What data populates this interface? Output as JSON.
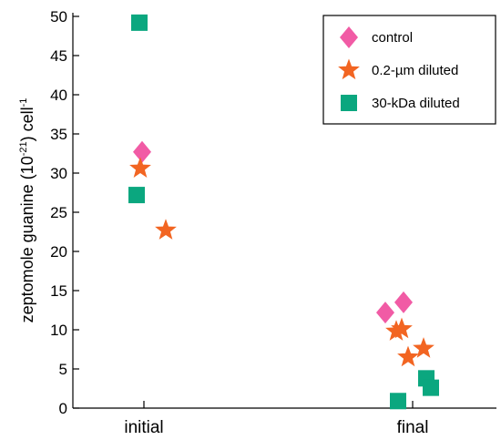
{
  "chart_data": {
    "type": "scatter",
    "categories": [
      "initial",
      "final"
    ],
    "ylabel_parts": {
      "main": "zeptomole guanine (10",
      "exp1": "-21",
      "mid": ") cell",
      "exp2": "-1"
    },
    "ylim": [
      0,
      50
    ],
    "yticks": [
      0,
      5,
      10,
      15,
      20,
      25,
      30,
      35,
      40,
      45,
      50
    ],
    "grid": false,
    "legend_position": "top-right",
    "series": [
      {
        "name": "control",
        "marker": "diamond",
        "color": "#f15ba5",
        "points": [
          {
            "x": "initial",
            "offset": -0.02,
            "y": 32.7
          },
          {
            "x": "final",
            "offset": -0.3,
            "y": 12.2
          },
          {
            "x": "final",
            "offset": -0.1,
            "y": 13.5
          }
        ]
      },
      {
        "name": "0.2-µm diluted",
        "marker": "star",
        "color": "#f26522",
        "points": [
          {
            "x": "initial",
            "offset": -0.04,
            "y": 30.6
          },
          {
            "x": "initial",
            "offset": 0.24,
            "y": 22.7
          },
          {
            "x": "final",
            "offset": -0.18,
            "y": 9.8
          },
          {
            "x": "final",
            "offset": -0.12,
            "y": 10.1
          },
          {
            "x": "final",
            "offset": -0.05,
            "y": 6.5
          },
          {
            "x": "final",
            "offset": 0.12,
            "y": 7.6
          }
        ]
      },
      {
        "name": "30-kDa diluted",
        "marker": "square",
        "color": "#0ba77f",
        "points": [
          {
            "x": "initial",
            "offset": -0.05,
            "y": 49.2
          },
          {
            "x": "initial",
            "offset": -0.08,
            "y": 27.2
          },
          {
            "x": "final",
            "offset": -0.16,
            "y": 0.9
          },
          {
            "x": "final",
            "offset": 0.15,
            "y": 3.8
          },
          {
            "x": "final",
            "offset": 0.2,
            "y": 2.6
          }
        ]
      }
    ]
  }
}
